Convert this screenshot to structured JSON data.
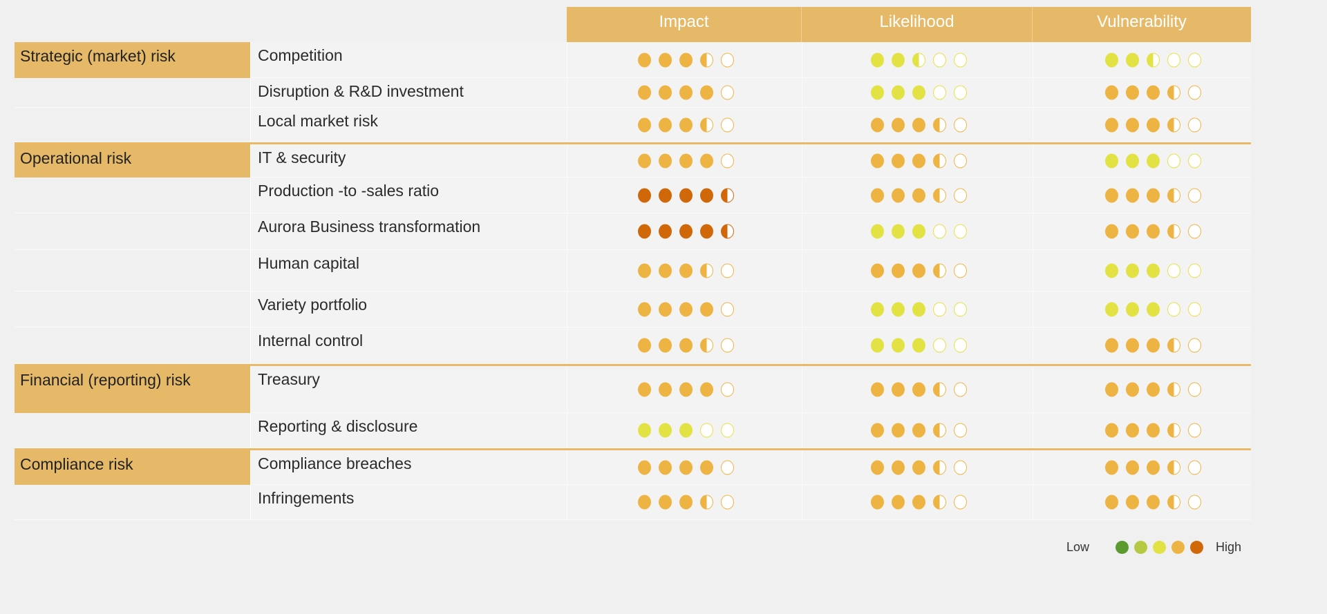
{
  "headers": [
    "Impact",
    "Likelihood",
    "Vulnerability"
  ],
  "palette": {
    "dark-green": "#5a9a2e",
    "light-green": "#b5c945",
    "yellow": "#e3e244",
    "orange": "#eeb443",
    "dark-orange": "#d0680a"
  },
  "rows": [
    {
      "category": "Strategic (market) risk",
      "risk": "Competition",
      "impact": {
        "score": 3.5,
        "color": "orange"
      },
      "likelihood": {
        "score": 2.5,
        "color": "yellow"
      },
      "vulnerability": {
        "score": 2.5,
        "color": "yellow"
      }
    },
    {
      "category": "",
      "risk": "Disruption & R&D investment",
      "impact": {
        "score": 4,
        "color": "orange"
      },
      "likelihood": {
        "score": 3,
        "color": "yellow"
      },
      "vulnerability": {
        "score": 3.5,
        "color": "orange"
      }
    },
    {
      "category": "",
      "risk": "Local market risk",
      "impact": {
        "score": 3.5,
        "color": "orange"
      },
      "likelihood": {
        "score": 3.5,
        "color": "orange"
      },
      "vulnerability": {
        "score": 3.5,
        "color": "orange"
      }
    },
    {
      "category": "Operational risk",
      "risk": "IT & security",
      "impact": {
        "score": 4,
        "color": "orange"
      },
      "likelihood": {
        "score": 3.5,
        "color": "orange"
      },
      "vulnerability": {
        "score": 3,
        "color": "yellow"
      }
    },
    {
      "category": "",
      "risk": "Production  -to -sales ratio",
      "impact": {
        "score": 4.5,
        "color": "dark-orange"
      },
      "likelihood": {
        "score": 3.5,
        "color": "orange"
      },
      "vulnerability": {
        "score": 3.5,
        "color": "orange"
      }
    },
    {
      "category": "",
      "risk": "Aurora Business transformation",
      "impact": {
        "score": 4.5,
        "color": "dark-orange"
      },
      "likelihood": {
        "score": 3,
        "color": "yellow"
      },
      "vulnerability": {
        "score": 3.5,
        "color": "orange"
      }
    },
    {
      "category": "",
      "risk": "Human capital",
      "impact": {
        "score": 3.5,
        "color": "orange"
      },
      "likelihood": {
        "score": 3.5,
        "color": "orange"
      },
      "vulnerability": {
        "score": 3,
        "color": "yellow"
      }
    },
    {
      "category": "",
      "risk": "Variety portfolio",
      "impact": {
        "score": 4,
        "color": "orange"
      },
      "likelihood": {
        "score": 3,
        "color": "yellow"
      },
      "vulnerability": {
        "score": 3,
        "color": "yellow"
      }
    },
    {
      "category": "",
      "risk": "Internal control",
      "impact": {
        "score": 3.5,
        "color": "orange"
      },
      "likelihood": {
        "score": 3,
        "color": "yellow"
      },
      "vulnerability": {
        "score": 3.5,
        "color": "orange"
      }
    },
    {
      "category": "Financial (reporting) risk",
      "risk": "Treasury",
      "impact": {
        "score": 4,
        "color": "orange"
      },
      "likelihood": {
        "score": 3.5,
        "color": "orange"
      },
      "vulnerability": {
        "score": 3.5,
        "color": "orange"
      }
    },
    {
      "category": "",
      "risk": "Reporting & disclosure",
      "impact": {
        "score": 3,
        "color": "yellow"
      },
      "likelihood": {
        "score": 3.5,
        "color": "orange"
      },
      "vulnerability": {
        "score": 3.5,
        "color": "orange"
      }
    },
    {
      "category": "Compliance risk",
      "risk": "Compliance breaches",
      "impact": {
        "score": 4,
        "color": "orange"
      },
      "likelihood": {
        "score": 3.5,
        "color": "orange"
      },
      "vulnerability": {
        "score": 3.5,
        "color": "orange"
      }
    },
    {
      "category": "",
      "risk": "Infringements",
      "impact": {
        "score": 3.5,
        "color": "orange"
      },
      "likelihood": {
        "score": 3.5,
        "color": "orange"
      },
      "vulnerability": {
        "score": 3.5,
        "color": "orange"
      }
    }
  ],
  "legend": {
    "low": "Low",
    "high": "High",
    "scale": [
      "dark-green",
      "light-green",
      "yellow",
      "orange",
      "dark-orange"
    ]
  }
}
